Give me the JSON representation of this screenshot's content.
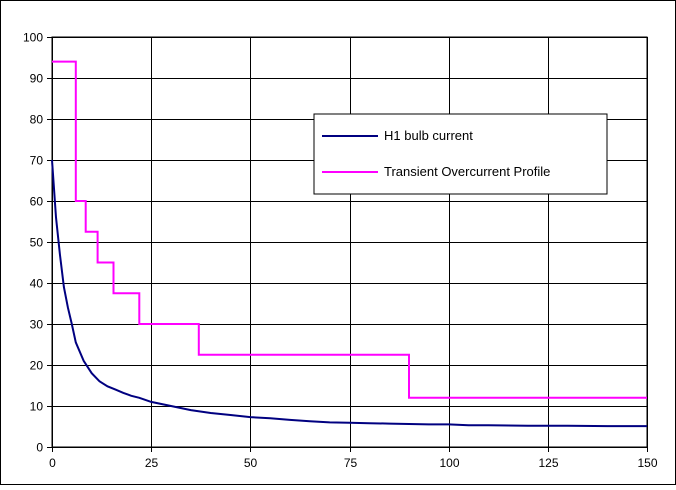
{
  "chart_data": {
    "type": "line",
    "title": "",
    "xlabel": "",
    "ylabel": "",
    "xlim": [
      0,
      150
    ],
    "ylim": [
      0,
      100
    ],
    "xticks": [
      0,
      25,
      50,
      75,
      100,
      125,
      150
    ],
    "yticks": [
      0,
      10,
      20,
      30,
      40,
      50,
      60,
      70,
      80,
      90,
      100
    ],
    "grid": true,
    "legend_position": "top-right",
    "series": [
      {
        "name": "H1 bulb current",
        "color": "#000080",
        "style": "line",
        "x": [
          0,
          1,
          2,
          3,
          4,
          5,
          6,
          8,
          10,
          12,
          14,
          16,
          18,
          20,
          22,
          25,
          30,
          35,
          40,
          45,
          50,
          55,
          60,
          65,
          70,
          75,
          80,
          85,
          90,
          95,
          100,
          105,
          110,
          120,
          130,
          140,
          150
        ],
        "y": [
          70,
          56,
          47,
          39,
          34,
          30,
          25.5,
          21,
          18,
          16,
          14.8,
          14,
          13.2,
          12.5,
          12,
          11,
          10,
          9,
          8.3,
          7.8,
          7.3,
          7,
          6.6,
          6.3,
          6,
          5.9,
          5.8,
          5.7,
          5.6,
          5.5,
          5.5,
          5.3,
          5.3,
          5.2,
          5.2,
          5.1,
          5.1
        ]
      },
      {
        "name": "Transient Overcurrent Profile",
        "color": "#FF00FF",
        "style": "step",
        "x": [
          0,
          6,
          6,
          8.5,
          8.5,
          11.5,
          11.5,
          15.5,
          15.5,
          22,
          22,
          37,
          37,
          90,
          90,
          150
        ],
        "y": [
          94,
          94,
          60,
          60,
          52.5,
          52.5,
          45,
          45,
          37.5,
          37.5,
          30,
          30,
          22.5,
          22.5,
          12,
          12
        ]
      }
    ]
  }
}
